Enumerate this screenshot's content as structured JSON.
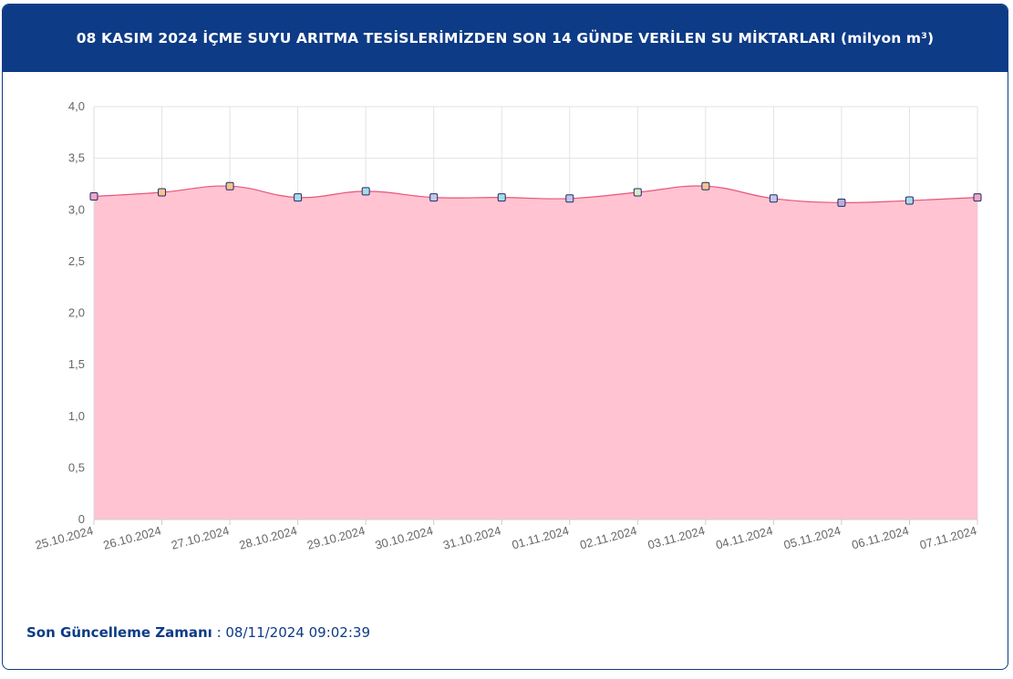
{
  "header": {
    "title": "08 KASIM 2024 İÇME SUYU ARITMA TESİSLERİMİZDEN SON 14 GÜNDE VERİLEN SU MİKTARLARI (milyon m³)"
  },
  "footer": {
    "label": "Son Güncelleme Zamanı",
    "separator": " : ",
    "value": "08/11/2024 09:02:39"
  },
  "colors": {
    "header_bg": "#0d3b86",
    "area_fill": "#ffc0cf",
    "line": "#e8557a",
    "grid": "#e3e3e3",
    "marker_border": "#1f2d6b",
    "marker_colors": [
      "#f2a7c6",
      "#f5c58e",
      "#f5c58e",
      "#a8dbe6",
      "#a8dbe6",
      "#c4c7e6",
      "#a8dbe6",
      "#c4c7e6",
      "#d8ecc2",
      "#f5c58e",
      "#c4c7e6",
      "#b9b0d9",
      "#a8dbe6",
      "#f2a7c6"
    ]
  },
  "chart_data": {
    "type": "area",
    "title": "",
    "xlabel": "",
    "ylabel": "",
    "categories": [
      "25.10.2024",
      "26.10.2024",
      "27.10.2024",
      "28.10.2024",
      "29.10.2024",
      "30.10.2024",
      "31.10.2024",
      "01.11.2024",
      "02.11.2024",
      "03.11.2024",
      "04.11.2024",
      "05.11.2024",
      "06.11.2024",
      "07.11.2024"
    ],
    "values": [
      3.13,
      3.17,
      3.23,
      3.12,
      3.18,
      3.12,
      3.12,
      3.11,
      3.17,
      3.23,
      3.11,
      3.07,
      3.09,
      3.12
    ],
    "ylim": [
      0,
      4
    ],
    "yticks": [
      "0",
      "0,5",
      "1,0",
      "1,5",
      "2,0",
      "2,5",
      "3,0",
      "3,5",
      "4,0"
    ],
    "ytick_values": [
      0,
      0.5,
      1,
      1.5,
      2,
      2.5,
      3,
      3.5,
      4
    ],
    "grid": true,
    "legend": "none",
    "x_tick_rotation": "angled"
  }
}
